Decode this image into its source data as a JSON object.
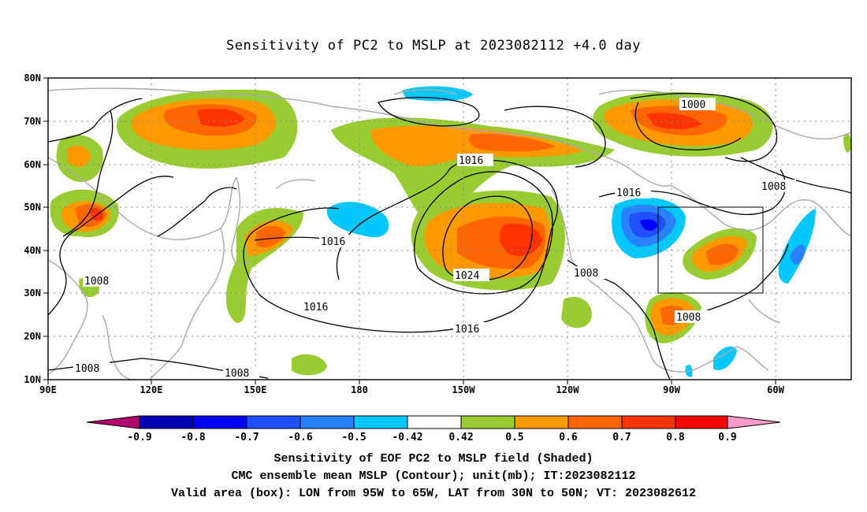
{
  "title": "Sensitivity of PC2 to MSLP at 2023082112 +4.0 day",
  "map": {
    "lat_labels": [
      "80N",
      "70N",
      "60N",
      "50N",
      "40N",
      "30N",
      "20N",
      "10N"
    ],
    "lon_labels": [
      "90E",
      "120E",
      "150E",
      "180",
      "150W",
      "120W",
      "90W",
      "60W"
    ],
    "contour_labels": [
      "1000",
      "1016",
      "1008",
      "1016",
      "1008",
      "1016",
      "1024",
      "1008",
      "1016",
      "1016",
      "1008",
      "1008",
      "1008"
    ],
    "box": {
      "lon": [
        "95W",
        "65W"
      ],
      "lat": [
        "30N",
        "50N"
      ]
    },
    "colors": {
      "land_outline": "#aaaaaa",
      "contour": "#000000",
      "grid": "#888888"
    }
  },
  "colorbar": {
    "labels": [
      "-0.9",
      "-0.8",
      "-0.7",
      "-0.6",
      "-0.5",
      "-0.42",
      "0.42",
      "0.5",
      "0.6",
      "0.7",
      "0.8",
      "0.9"
    ],
    "colors": [
      "#b4006e",
      "#0000b4",
      "#0000ff",
      "#1e50ff",
      "#2882ff",
      "#00c8ff",
      "#ffffff",
      "#99cc33",
      "#ff9900",
      "#ff6600",
      "#ff3300",
      "#ff0000",
      "#ff99cc"
    ]
  },
  "captions": [
    "Sensitivity of EOF PC2 to MSLP field (Shaded)",
    "CMC ensemble mean MSLP (Contour); unit(mb); IT:2023082112",
    "Valid area (box): LON from 95W to 65W, LAT from 30N to 50N; VT: 2023082612"
  ]
}
